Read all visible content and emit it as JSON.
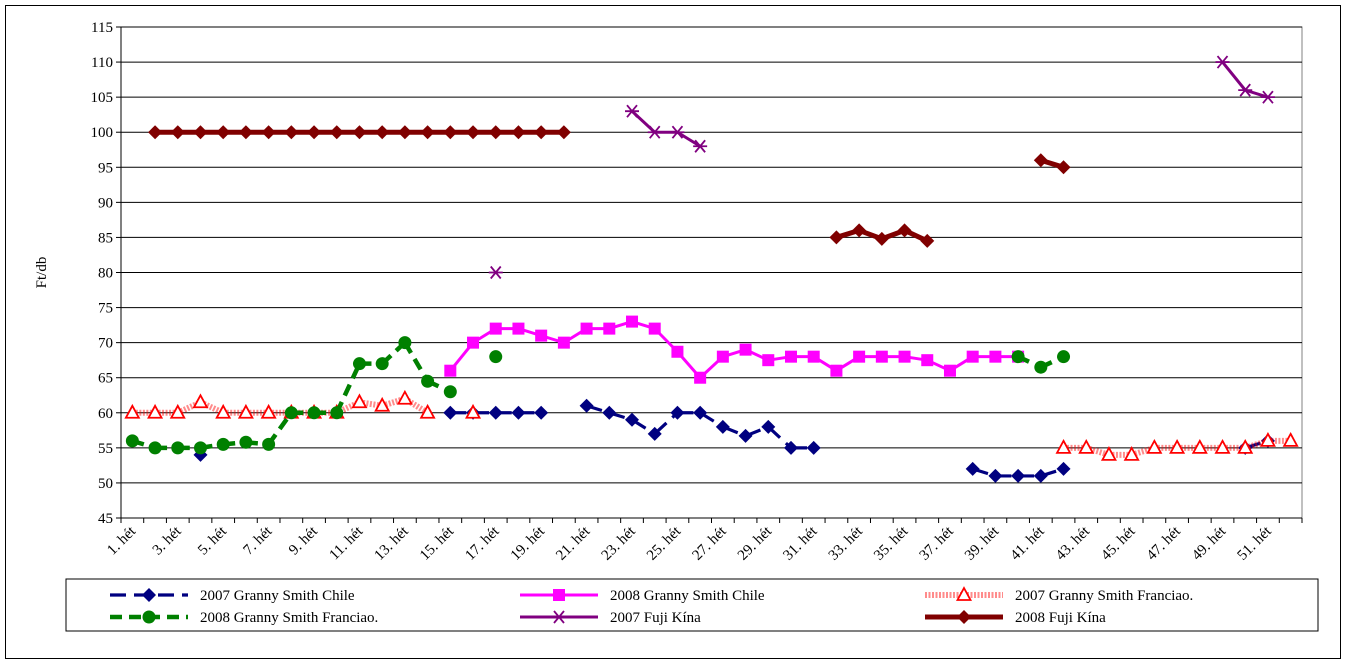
{
  "chart_data": {
    "type": "line",
    "title": "",
    "xlabel": "",
    "ylabel": "Ft/db",
    "ylim": [
      45,
      115
    ],
    "ytick_step": 5,
    "grid": "horizontal",
    "legend_position": "bottom",
    "yticks": [
      "45",
      "50",
      "55",
      "60",
      "65",
      "70",
      "75",
      "80",
      "85",
      "90",
      "95",
      "100",
      "105",
      "110",
      "115"
    ],
    "x_tick_labels": [
      "1. hét",
      "3. hét",
      "5. hét",
      "7. hét",
      "9. hét",
      "11. hét",
      "13. hét",
      "15. hét",
      "17. hét",
      "19. hét",
      "21. hét",
      "23. hét",
      "25. hét",
      "27. hét",
      "29. hét",
      "31. hét",
      "33. hét",
      "35. hét",
      "37. hét",
      "39. hét",
      "41. hét",
      "43. hét",
      "45. hét",
      "47. hét",
      "49. hét",
      "51. hét"
    ],
    "x_count": 52,
    "series": [
      {
        "name": "2007 Granny Smith Chile",
        "color": "#000080",
        "marker": "diamond",
        "dash": "long",
        "values": [
          null,
          null,
          null,
          54,
          null,
          null,
          null,
          null,
          null,
          null,
          null,
          null,
          null,
          null,
          60,
          60,
          60,
          60,
          60,
          null,
          61,
          60,
          59,
          57,
          60,
          60,
          58,
          56.7,
          58,
          55,
          55,
          null,
          null,
          null,
          null,
          null,
          null,
          52,
          51,
          51,
          51,
          52,
          null,
          null,
          null,
          null,
          null,
          null,
          null,
          55,
          56,
          null
        ]
      },
      {
        "name": "2008 Granny Smith Chile",
        "color": "#ff00ff",
        "marker": "square",
        "dash": "solid",
        "values": [
          null,
          null,
          null,
          null,
          null,
          null,
          null,
          null,
          null,
          null,
          null,
          null,
          null,
          null,
          66,
          70,
          72,
          72,
          71,
          70,
          72,
          72,
          73,
          72,
          68.7,
          65,
          68,
          69,
          67.5,
          68,
          68,
          66,
          68,
          68,
          68,
          67.5,
          66,
          68,
          68,
          68,
          null,
          null,
          null,
          null,
          null,
          null,
          null,
          null,
          null,
          null,
          null,
          null
        ]
      },
      {
        "name": "2007 Granny Smith Franciao.",
        "color": "#ff0000",
        "marker": "triangle",
        "dash": "hatched",
        "values": [
          60,
          60,
          60,
          61.5,
          60,
          60,
          60,
          60,
          60,
          60,
          61.5,
          61,
          62,
          60,
          null,
          60,
          null,
          null,
          null,
          null,
          null,
          null,
          null,
          null,
          null,
          null,
          null,
          null,
          null,
          null,
          null,
          null,
          null,
          null,
          null,
          null,
          null,
          null,
          null,
          null,
          null,
          55,
          55,
          54,
          54,
          55,
          55,
          55,
          55,
          55,
          56,
          56
        ]
      },
      {
        "name": "2008 Granny Smith Franciao.",
        "color": "#008000",
        "marker": "circle",
        "dash": "dashed",
        "values": [
          56,
          55,
          55,
          55,
          55.5,
          55.8,
          55.5,
          60,
          60,
          60,
          67,
          67,
          70,
          64.5,
          63,
          null,
          68,
          null,
          null,
          null,
          null,
          null,
          null,
          null,
          null,
          null,
          null,
          null,
          null,
          null,
          null,
          null,
          null,
          null,
          null,
          null,
          null,
          null,
          null,
          68,
          66.5,
          68,
          null,
          null,
          null,
          null,
          null,
          null,
          null,
          null,
          null,
          null
        ]
      },
      {
        "name": "2007 Fuji Kína",
        "color": "#800080",
        "marker": "star",
        "dash": "solid",
        "values": [
          null,
          null,
          null,
          null,
          null,
          null,
          null,
          null,
          null,
          null,
          null,
          null,
          null,
          null,
          null,
          null,
          80,
          null,
          null,
          null,
          null,
          null,
          103,
          100,
          100,
          98,
          null,
          null,
          null,
          null,
          null,
          null,
          null,
          null,
          null,
          null,
          null,
          null,
          null,
          null,
          null,
          null,
          null,
          null,
          null,
          null,
          null,
          null,
          110,
          106,
          105,
          null
        ]
      },
      {
        "name": "2008 Fuji Kína",
        "color": "#800000",
        "marker": "diamond",
        "dash": "thick",
        "values": [
          null,
          100,
          100,
          100,
          100,
          100,
          100,
          100,
          100,
          100,
          100,
          100,
          100,
          100,
          100,
          100,
          100,
          100,
          100,
          100,
          null,
          null,
          null,
          null,
          null,
          null,
          null,
          null,
          null,
          null,
          null,
          85,
          86,
          84.8,
          86,
          84.5,
          null,
          null,
          null,
          null,
          96,
          95,
          null,
          null,
          null,
          null,
          null,
          null,
          null,
          null,
          null,
          null
        ]
      }
    ]
  }
}
